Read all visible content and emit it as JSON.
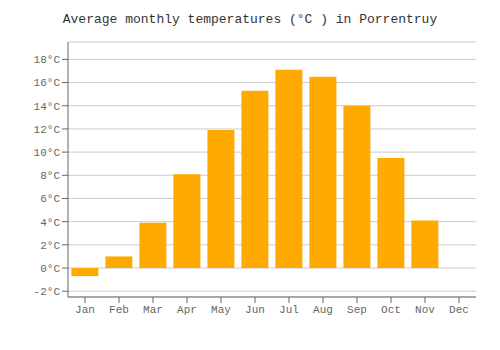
{
  "chart_data": {
    "type": "bar",
    "title": "Average monthly temperatures (°C ) in Porrentruy",
    "categories": [
      "Jan",
      "Feb",
      "Mar",
      "Apr",
      "May",
      "Jun",
      "Jul",
      "Aug",
      "Sep",
      "Oct",
      "Nov",
      "Dec"
    ],
    "values": [
      -0.7,
      1.0,
      3.9,
      8.1,
      11.9,
      15.3,
      17.1,
      16.5,
      14.0,
      9.5,
      4.1,
      0.0
    ],
    "color": "#FFAA00",
    "ylim": [
      -2.5,
      19.5
    ],
    "yticks": [
      {
        "value": -2,
        "label": "-2°C"
      },
      {
        "value": 0,
        "label": "0°C"
      },
      {
        "value": 2,
        "label": "2°C"
      },
      {
        "value": 4,
        "label": "4°C"
      },
      {
        "value": 6,
        "label": "6°C"
      },
      {
        "value": 8,
        "label": "8°C"
      },
      {
        "value": 10,
        "label": "10°C"
      },
      {
        "value": 12,
        "label": "12°C"
      },
      {
        "value": 14,
        "label": "14°C"
      },
      {
        "value": 16,
        "label": "16°C"
      },
      {
        "value": 18,
        "label": "18°C"
      }
    ],
    "grid": true
  }
}
